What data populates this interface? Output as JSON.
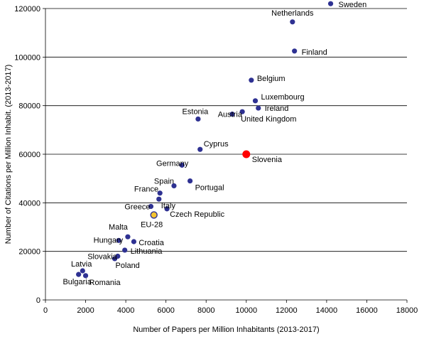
{
  "chart_data": {
    "type": "scatter",
    "xlabel": "Number of Papers per Million Inhabitants (2013-2017)",
    "ylabel": "Number of Citations per Million Inhabit. (2013-2017)",
    "xlim": [
      0,
      18000
    ],
    "ylim": [
      0,
      120000
    ],
    "x_ticks": [
      0,
      2000,
      4000,
      6000,
      8000,
      10000,
      12000,
      14000,
      16000,
      18000
    ],
    "y_ticks": [
      0,
      20000,
      40000,
      60000,
      80000,
      100000,
      120000
    ],
    "grid": "horizontal",
    "colors": {
      "point": "#2E3192",
      "slovenia": "#FF0000",
      "eu28_fill": "#F4C430",
      "eu28_border": "#2E3192",
      "eu28_label": "#F4C430",
      "gridline": "#000000"
    },
    "points": [
      {
        "label": "Sweden",
        "x": 14200,
        "y": 122000
      },
      {
        "label": "Netherlands",
        "x": 12300,
        "y": 114500
      },
      {
        "label": "Finland",
        "x": 12400,
        "y": 102500
      },
      {
        "label": "Belgium",
        "x": 10250,
        "y": 90500
      },
      {
        "label": "Luxembourg",
        "x": 10450,
        "y": 82000
      },
      {
        "label": "Ireland",
        "x": 10600,
        "y": 79000
      },
      {
        "label": "United Kingdom",
        "x": 9800,
        "y": 77500
      },
      {
        "label": "Austria",
        "x": 9300,
        "y": 76500
      },
      {
        "label": "Estonia",
        "x": 7600,
        "y": 74500
      },
      {
        "label": "Cyprus",
        "x": 7700,
        "y": 62000
      },
      {
        "label": "Slovenia",
        "x": 10000,
        "y": 60000
      },
      {
        "label": "Germany",
        "x": 6800,
        "y": 55500
      },
      {
        "label": "Spain",
        "x": 6400,
        "y": 47000
      },
      {
        "label": "Portugal",
        "x": 7200,
        "y": 49000
      },
      {
        "label": "France",
        "x": 5700,
        "y": 44000
      },
      {
        "label": "Italy",
        "x": 5650,
        "y": 41500
      },
      {
        "label": "Greece",
        "x": 5250,
        "y": 38500
      },
      {
        "label": "Czech Republic",
        "x": 6050,
        "y": 37500
      },
      {
        "label": "EU-28",
        "x": 5400,
        "y": 35000
      },
      {
        "label": "Malta",
        "x": 4100,
        "y": 26000
      },
      {
        "label": "Hungary",
        "x": 3650,
        "y": 24500
      },
      {
        "label": "Croatia",
        "x": 4400,
        "y": 24000
      },
      {
        "label": "Lithuania",
        "x": 3950,
        "y": 20500
      },
      {
        "label": "Slovakia",
        "x": 3600,
        "y": 18000
      },
      {
        "label": "Poland",
        "x": 3450,
        "y": 17000
      },
      {
        "label": "Latvia",
        "x": 1850,
        "y": 12000
      },
      {
        "label": "Bulgaria",
        "x": 1650,
        "y": 10500
      },
      {
        "label": "Romania",
        "x": 2000,
        "y": 10000
      }
    ]
  }
}
